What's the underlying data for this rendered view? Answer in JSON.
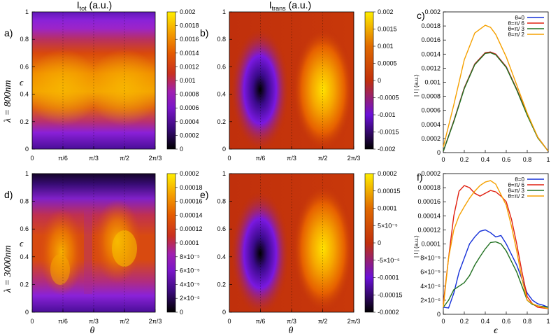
{
  "colors": {
    "colormap": [
      "#000000",
      "#5a0c9c",
      "#8a1fd2",
      "#c02a68",
      "#e0490a",
      "#f08a00",
      "#f8c000",
      "#ffee00"
    ],
    "series": [
      "#1530d8",
      "#e02010",
      "#207020",
      "#f5a000"
    ],
    "diverging": [
      "#000000",
      "#6a10d8",
      "#c0300c",
      "#e06a00",
      "#ffee00"
    ]
  },
  "chart_data": [
    {
      "id": "a",
      "panel_label": "a)",
      "type": "heatmap",
      "title": "I_tot (a.u.)",
      "title_main": "I",
      "title_sub": "tot",
      "title_tail": "(a.u.)",
      "ylabel": "ϵ",
      "row_label": "λ = 800nm",
      "x_ticks": [
        "0",
        "π/6",
        "π/3",
        "π/2",
        "2π/3"
      ],
      "y_ticks": [
        "0",
        "0.2",
        "0.4",
        "0.6",
        "0.8",
        "1"
      ],
      "colorbar_ticks": [
        "0",
        "0.0002",
        "0.0004",
        "0.0006",
        "0.0008",
        "0.001",
        "0.0012",
        "0.0014",
        "0.0016",
        "0.0018",
        "0.002"
      ],
      "zlim": [
        0,
        0.002
      ],
      "xlim": [
        0,
        2.0944
      ],
      "ylim": [
        0,
        1
      ]
    },
    {
      "id": "b",
      "panel_label": "b)",
      "type": "heatmap",
      "title": "I_trans (a.u.)",
      "title_main": "I",
      "title_sub": "trans",
      "title_tail": "(a.u.)",
      "x_ticks": [
        "0",
        "π/6",
        "π/3",
        "π/2",
        "2π/3"
      ],
      "y_ticks": [
        "0",
        "0.2",
        "0.4",
        "0.6",
        "0.8",
        "1"
      ],
      "colorbar_ticks": [
        "-0.002",
        "-0.0015",
        "-0.001",
        "-0.0005",
        "0",
        "0.0005",
        "0.001",
        "0.0015",
        "0.002"
      ],
      "zlim": [
        -0.002,
        0.002
      ],
      "xlim": [
        0,
        2.0944
      ],
      "ylim": [
        0,
        1
      ]
    },
    {
      "id": "c",
      "panel_label": "c)",
      "type": "line",
      "ylabel": "| I | (a.u.)",
      "x_ticks": [
        "0",
        "0.2",
        "0.4",
        "0.6",
        "0.8",
        "1"
      ],
      "y_ticks": [
        "0",
        "0.0002",
        "0.0004",
        "0.0006",
        "0.0008",
        "0.001",
        "0.0012",
        "0.0014",
        "0.0016",
        "0.0018",
        "0.002"
      ],
      "xlim": [
        0,
        1
      ],
      "ylim": [
        0,
        0.002
      ],
      "x": [
        0,
        0.1,
        0.2,
        0.3,
        0.4,
        0.45,
        0.5,
        0.6,
        0.7,
        0.8,
        0.9,
        1.0
      ],
      "series": [
        {
          "name": "θ=0",
          "values": [
            2e-05,
            0.00045,
            0.00092,
            0.00126,
            0.00142,
            0.00143,
            0.0014,
            0.00122,
            0.0009,
            0.00054,
            0.00022,
            2e-05
          ]
        },
        {
          "name": "θ=π/ 6",
          "values": [
            2e-05,
            0.00045,
            0.00092,
            0.00126,
            0.00142,
            0.00143,
            0.0014,
            0.00122,
            0.0009,
            0.00054,
            0.00022,
            2e-05
          ]
        },
        {
          "name": "θ=π/ 3",
          "values": [
            2e-05,
            0.00044,
            0.00091,
            0.00125,
            0.00141,
            0.00142,
            0.00139,
            0.00121,
            0.00089,
            0.00053,
            0.00021,
            2e-05
          ]
        },
        {
          "name": "θ=π/ 2",
          "values": [
            8e-05,
            0.00068,
            0.00132,
            0.0017,
            0.00181,
            0.00178,
            0.00168,
            0.00136,
            0.00096,
            0.00056,
            0.00022,
            2e-05
          ]
        }
      ]
    },
    {
      "id": "d",
      "panel_label": "d)",
      "type": "heatmap",
      "ylabel": "ϵ",
      "row_label": "λ = 3000nm",
      "xlabel": "θ",
      "x_ticks": [
        "0",
        "π/6",
        "π/3",
        "π/2",
        "2π/3"
      ],
      "y_ticks": [
        "0",
        "0.2",
        "0.4",
        "0.6",
        "0.8",
        "1"
      ],
      "colorbar_ticks": [
        "0",
        "2×10⁻⁵",
        "4×10⁻⁵",
        "6×10⁻⁵",
        "8×10⁻⁵",
        "0.0001",
        "0.00012",
        "0.00014",
        "0.00016",
        "0.00018",
        "0.0002"
      ],
      "zlim": [
        0,
        0.0002
      ],
      "xlim": [
        0,
        2.0944
      ],
      "ylim": [
        0,
        1
      ]
    },
    {
      "id": "e",
      "panel_label": "e)",
      "type": "heatmap",
      "xlabel": "θ",
      "x_ticks": [
        "0",
        "π/6",
        "π/3",
        "π/2",
        "2π/3"
      ],
      "y_ticks": [
        "0",
        "0.2",
        "0.4",
        "0.6",
        "0.8",
        "1"
      ],
      "colorbar_ticks": [
        "-0.0002",
        "-0.00015",
        "-0.0001",
        "-5×10⁻⁵",
        "0",
        "5×10⁻⁵",
        "0.0001",
        "0.00015",
        "0.0002"
      ],
      "zlim": [
        -0.0002,
        0.0002
      ],
      "xlim": [
        0,
        2.0944
      ],
      "ylim": [
        0,
        1
      ]
    },
    {
      "id": "f",
      "panel_label": "f)",
      "type": "line",
      "ylabel": "| I | (a.u.)",
      "xlabel": "ϵ",
      "x_ticks": [
        "0",
        "0.2",
        "0.4",
        "0.6",
        "0.8",
        "1"
      ],
      "y_ticks": [
        "0",
        "2×10⁻⁵",
        "4×10⁻⁵",
        "6×10⁻⁵",
        "8×10⁻⁵",
        "0.0001",
        "0.00012",
        "0.00014",
        "0.00016",
        "0.00018",
        "0.0002"
      ],
      "xlim": [
        0,
        1
      ],
      "ylim": [
        0,
        0.0002
      ],
      "x": [
        0,
        0.05,
        0.1,
        0.15,
        0.2,
        0.25,
        0.3,
        0.35,
        0.4,
        0.45,
        0.5,
        0.55,
        0.6,
        0.65,
        0.7,
        0.75,
        0.8,
        0.85,
        0.9,
        0.95,
        1.0
      ],
      "series": [
        {
          "name": "θ=0",
          "values": [
            1e-05,
            9e-06,
            3e-05,
            6e-05,
            8e-05,
            0.0001,
            0.00011,
            0.000118,
            0.00012,
            0.000116,
            0.00011,
            0.000112,
            0.0001,
            8.5e-05,
            7e-05,
            5e-05,
            3e-05,
            2e-05,
            1.5e-05,
            1.3e-05,
            1e-05
          ]
        },
        {
          "name": "θ=π/ 6",
          "values": [
            1.5e-05,
            8e-05,
            0.00014,
            0.000175,
            0.000183,
            0.00018,
            0.000172,
            0.000168,
            0.000172,
            0.000176,
            0.000174,
            0.000168,
            0.00016,
            0.000135,
            0.0001,
            6e-05,
            2.5e-05,
            1.5e-05,
            1e-05,
            9e-06,
            8e-06
          ]
        },
        {
          "name": "θ=π/ 3",
          "values": [
            1e-05,
            2e-05,
            3.5e-05,
            4e-05,
            4.5e-05,
            5.5e-05,
            7e-05,
            8.2e-05,
            9.3e-05,
            0.000102,
            0.000103,
            0.0001,
            9e-05,
            7.5e-05,
            6e-05,
            4e-05,
            2e-05,
            1.4e-05,
            1.2e-05,
            1.1e-05,
            1e-05
          ]
        },
        {
          "name": "θ=π/ 2",
          "values": [
            1e-05,
            8e-05,
            0.00012,
            0.00014,
            0.000153,
            0.000165,
            0.000175,
            0.000183,
            0.000188,
            0.00019,
            0.000185,
            0.00017,
            0.000155,
            0.000125,
            9e-05,
            5e-05,
            2e-05,
            1.5e-05,
            1.2e-05,
            1e-05,
            8e-06
          ]
        }
      ]
    }
  ]
}
